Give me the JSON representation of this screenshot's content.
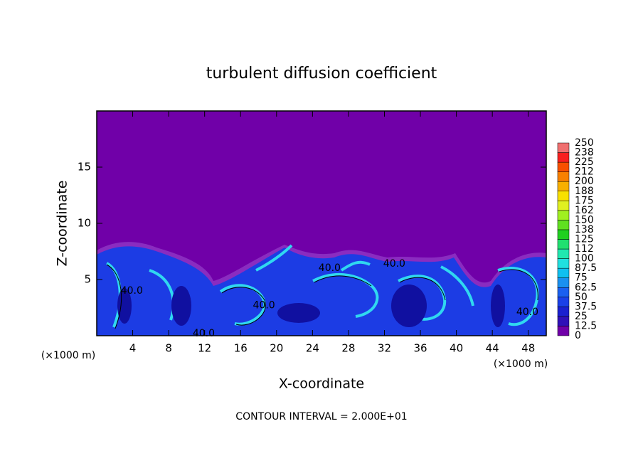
{
  "chart_data": {
    "type": "contour",
    "title": "turbulent diffusion coefficient",
    "xlabel": "X-coordinate",
    "ylabel": "Z-coordinate",
    "x_unit_left": "(×1000 m)",
    "x_unit_right": "(×1000 m)",
    "footer": "CONTOUR INTERVAL = 2.000E+01",
    "xlim": [
      0,
      50
    ],
    "xticks": [
      4,
      8,
      12,
      16,
      20,
      24,
      28,
      32,
      36,
      40,
      44,
      48
    ],
    "ylim": [
      0,
      20
    ],
    "yticks": [
      5,
      10,
      15
    ],
    "contour_labels": [
      {
        "label": "40.0",
        "x": 3.9,
        "y": 4.0
      },
      {
        "label": "40.0",
        "x": 18.6,
        "y": 2.7
      },
      {
        "label": "40.0",
        "x": 11.9,
        "y": 0.2
      },
      {
        "label": "40.0",
        "x": 25.9,
        "y": 6.0
      },
      {
        "label": "40.0",
        "x": 33.1,
        "y": 6.4
      },
      {
        "label": "40.0",
        "x": 47.9,
        "y": 2.1
      }
    ],
    "colorbar": {
      "levels": [
        0,
        12.5,
        25,
        37.5,
        50,
        62.5,
        75,
        87.5,
        100,
        112,
        125,
        138,
        150,
        162,
        175,
        188,
        200,
        212,
        225,
        238,
        250
      ],
      "colors": [
        "#7000a8",
        "#3010b8",
        "#1a20d0",
        "#1a40e8",
        "#1a60f0",
        "#1a90f0",
        "#10c0f0",
        "#20e0e0",
        "#20e8b0",
        "#20e070",
        "#20d020",
        "#60e020",
        "#a0f020",
        "#e0f020",
        "#f8e000",
        "#f8b000",
        "#f88000",
        "#f85000",
        "#f82020",
        "#f07070"
      ]
    }
  }
}
